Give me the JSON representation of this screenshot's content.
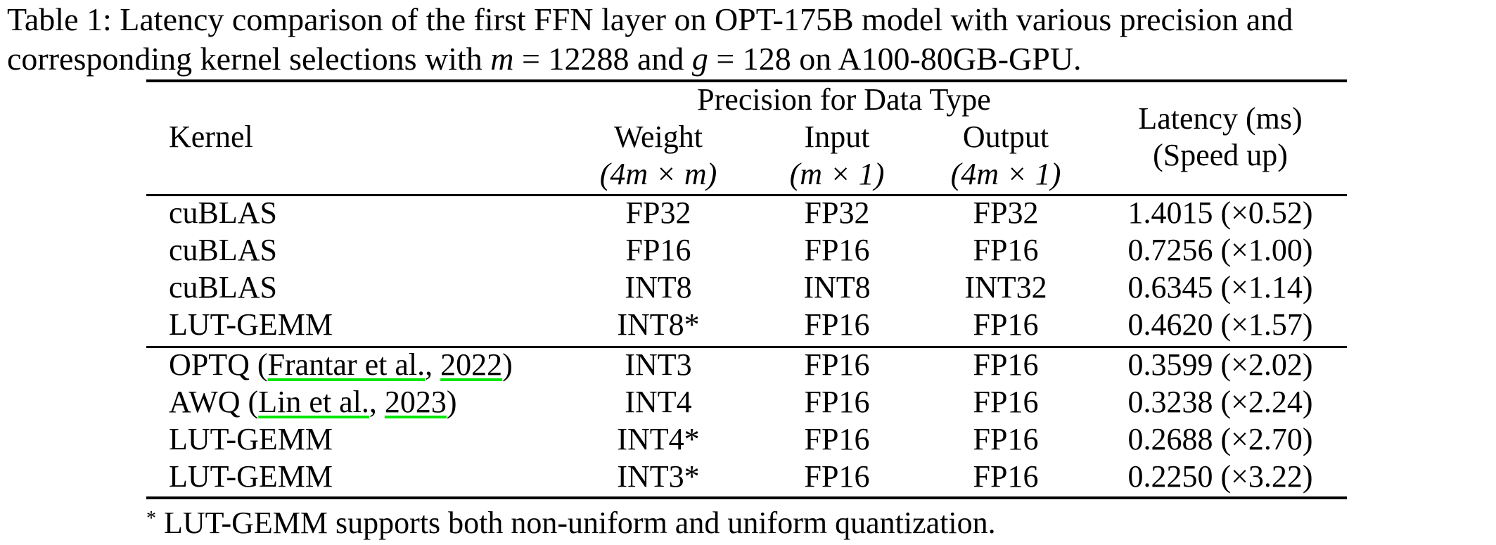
{
  "caption": {
    "line1_prefix": "Table 1: Latency comparison of the first FFN layer on OPT-175B model with various precision and",
    "line2_prefix": "corresponding kernel selections with ",
    "m_var": "m",
    "eq1": " = 12288 and ",
    "g_var": "g",
    "eq2": " = 128 on A100-80GB-GPU."
  },
  "header": {
    "kernel": "Kernel",
    "group": "Precision for Data Type",
    "weight": "Weight",
    "weight_shape": "(4m × m)",
    "input": "Input",
    "input_shape": "(m × 1)",
    "output": "Output",
    "output_shape": "(4m × 1)",
    "latency": "Latency (ms)",
    "speedup": "(Speed up)"
  },
  "rows_group1": [
    {
      "kernel": "cuBLAS",
      "weight": "FP32",
      "input": "FP32",
      "output": "FP32",
      "latency": "1.4015 (×0.52)"
    },
    {
      "kernel": "cuBLAS",
      "weight": "FP16",
      "input": "FP16",
      "output": "FP16",
      "latency": "0.7256 (×1.00)"
    },
    {
      "kernel": "cuBLAS",
      "weight": "INT8",
      "input": "INT8",
      "output": "INT32",
      "latency": "0.6345 (×1.14)"
    },
    {
      "kernel": "LUT-GEMM",
      "weight": "INT8*",
      "input": "FP16",
      "output": "FP16",
      "latency": "0.4620 (×1.57)"
    }
  ],
  "rows_group2": [
    {
      "kernel_name": "OPTQ (",
      "cite_author": "Frantar et al.",
      "cite_sep": ", ",
      "cite_year": "2022",
      "kernel_end": ")",
      "weight": "INT3",
      "input": "FP16",
      "output": "FP16",
      "latency": "0.3599 (×2.02)"
    },
    {
      "kernel_name": "AWQ (",
      "cite_author": "Lin et al.",
      "cite_sep": ", ",
      "cite_year": "2023",
      "kernel_end": ")",
      "weight": "INT4",
      "input": "FP16",
      "output": "FP16",
      "latency": "0.3238 (×2.24)"
    },
    {
      "kernel": "LUT-GEMM",
      "weight": "INT4*",
      "input": "FP16",
      "output": "FP16",
      "latency": "0.2688 (×2.70)"
    },
    {
      "kernel": "LUT-GEMM",
      "weight": "INT3*",
      "input": "FP16",
      "output": "FP16",
      "latency": "0.2250 (×3.22)"
    }
  ],
  "footnote": {
    "marker": "*",
    "text": " LUT-GEMM supports both non-uniform and uniform quantization."
  },
  "colors": {
    "citation_underline": "#00e600"
  }
}
